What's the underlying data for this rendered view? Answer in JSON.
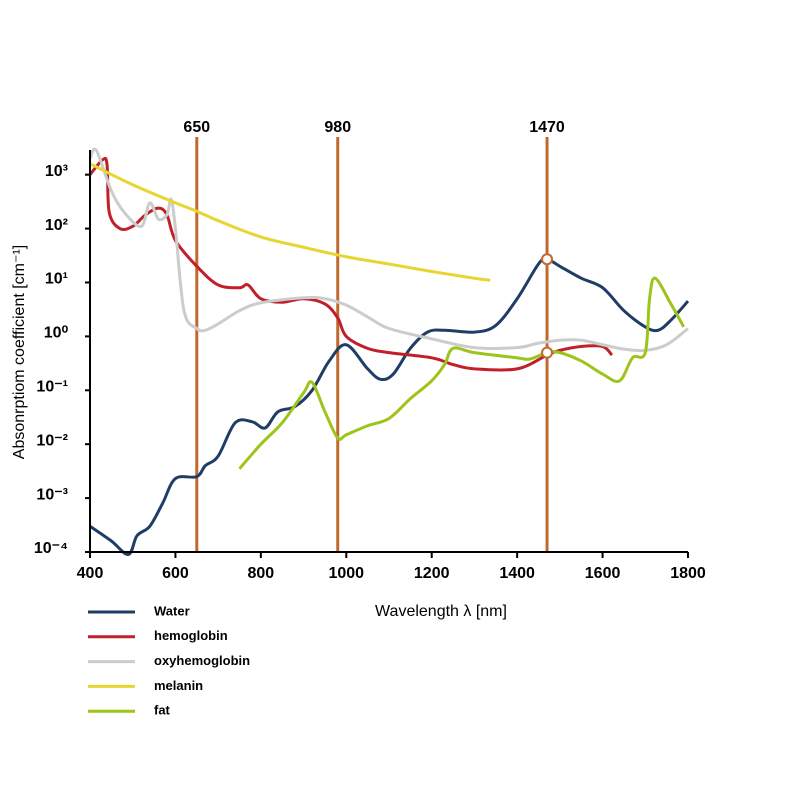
{
  "chart_data": {
    "type": "line",
    "xlabel": "Wavelength λ [nm]",
    "ylabel": "Absonrptiom coefficient [cm⁻¹]",
    "xlim": [
      400,
      1800
    ],
    "xticks": [
      400,
      600,
      800,
      1000,
      1200,
      1400,
      1600,
      1800
    ],
    "ylim": [
      0.0001,
      5000
    ],
    "yscale": "log",
    "yticks": [
      {
        "value": 1000,
        "label": "10³"
      },
      {
        "value": 100,
        "label": "10²"
      },
      {
        "value": 10,
        "label": "10¹"
      },
      {
        "value": 1,
        "label": "10⁰"
      },
      {
        "value": 0.1,
        "label": "10⁻¹"
      },
      {
        "value": 0.01,
        "label": "10⁻²"
      },
      {
        "value": 0.001,
        "label": "10⁻³"
      },
      {
        "value": 0.0001,
        "label": "10⁻⁴"
      }
    ],
    "markers": [
      650,
      980,
      1470
    ],
    "marker_color": "#c0692e",
    "highlights": [
      {
        "x": 1470,
        "y": 27
      },
      {
        "x": 1470,
        "y": 0.5
      }
    ],
    "series": [
      {
        "name": "Water",
        "color": "#1f3d66",
        "x": [
          400,
          450,
          490,
          510,
          540,
          570,
          600,
          650,
          670,
          700,
          740,
          780,
          810,
          840,
          880,
          920,
          960,
          1000,
          1050,
          1080,
          1110,
          1150,
          1190,
          1230,
          1300,
          1350,
          1400,
          1450,
          1470,
          1500,
          1550,
          1600,
          1650,
          1700,
          1730,
          1760,
          1800
        ],
        "values": [
          0.0003,
          0.00016,
          9e-05,
          0.0002,
          0.0003,
          0.0008,
          0.0023,
          0.0025,
          0.004,
          0.006,
          0.025,
          0.026,
          0.02,
          0.04,
          0.05,
          0.1,
          0.35,
          0.7,
          0.25,
          0.16,
          0.2,
          0.6,
          1.2,
          1.3,
          1.2,
          1.6,
          5,
          22,
          27,
          20,
          12,
          8,
          3,
          1.5,
          1.3,
          2,
          4.5
        ]
      },
      {
        "name": "hemoglobin",
        "color": "#c0202a",
        "x": [
          400,
          430,
          440,
          445,
          470,
          500,
          530,
          560,
          580,
          600,
          650,
          700,
          750,
          770,
          800,
          850,
          900,
          950,
          980,
          1000,
          1050,
          1100,
          1200,
          1250,
          1300,
          1400,
          1470,
          1500,
          1550,
          1600,
          1622
        ],
        "values": [
          1000,
          1900,
          1500,
          200,
          100,
          110,
          180,
          240,
          180,
          60,
          20,
          9,
          8,
          9,
          5,
          4.3,
          5,
          4,
          2.2,
          1,
          0.6,
          0.5,
          0.4,
          0.3,
          0.25,
          0.25,
          0.45,
          0.55,
          0.65,
          0.65,
          0.45
        ]
      },
      {
        "name": "oxyhemoglobin",
        "color": "#cccccc",
        "x": [
          400,
          415,
          450,
          480,
          520,
          540,
          560,
          580,
          590,
          600,
          620,
          650,
          670,
          700,
          750,
          800,
          900,
          950,
          1000,
          1050,
          1100,
          1200,
          1300,
          1400,
          1450,
          1500,
          1550,
          1600,
          1650,
          1700,
          1750,
          1800
        ],
        "values": [
          2000,
          2800,
          500,
          200,
          110,
          300,
          150,
          180,
          350,
          100,
          3,
          1.4,
          1.3,
          1.7,
          3,
          4.2,
          5.2,
          5,
          3.8,
          2.3,
          1.4,
          0.9,
          0.62,
          0.62,
          0.75,
          0.85,
          0.85,
          0.7,
          0.58,
          0.55,
          0.7,
          1.4
        ]
      },
      {
        "name": "melanin",
        "color": "#e8d630",
        "x": [
          400,
          500,
          600,
          650,
          700,
          800,
          900,
          1000,
          1100,
          1200,
          1300,
          1337
        ],
        "values": [
          1600,
          650,
          300,
          210,
          140,
          70,
          45,
          30,
          22,
          16,
          12,
          11
        ]
      },
      {
        "name": "fat",
        "color": "#9dc41a",
        "x": [
          750,
          800,
          850,
          900,
          920,
          950,
          980,
          1000,
          1050,
          1100,
          1150,
          1200,
          1230,
          1250,
          1300,
          1400,
          1430,
          1470,
          1500,
          1550,
          1600,
          1640,
          1670,
          1700,
          1710,
          1723,
          1760,
          1790
        ],
        "values": [
          0.0035,
          0.01,
          0.025,
          0.09,
          0.14,
          0.04,
          0.013,
          0.015,
          0.022,
          0.03,
          0.07,
          0.15,
          0.3,
          0.6,
          0.5,
          0.4,
          0.38,
          0.5,
          0.5,
          0.35,
          0.2,
          0.15,
          0.4,
          0.5,
          5,
          12,
          4,
          1.5
        ]
      }
    ]
  }
}
